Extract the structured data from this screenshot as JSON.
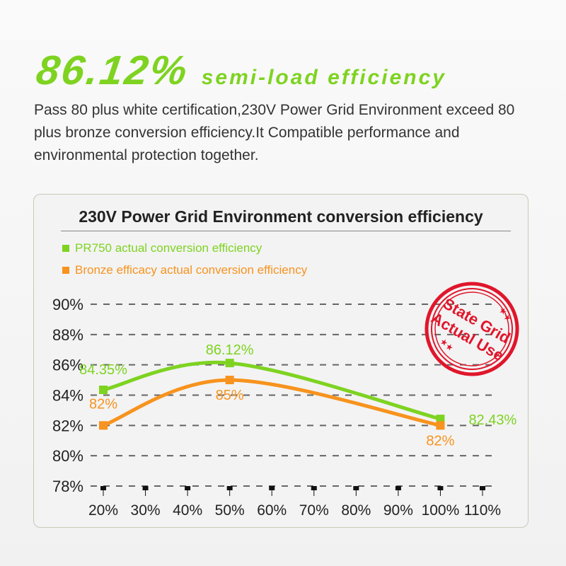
{
  "headline": {
    "value": "86.12%",
    "subtitle": "semi-load efficiency"
  },
  "description": "Pass 80 plus white certification,230V Power Grid Environment exceed 80 plus bronze conversion efficiency.It Compatible performance and environmental protection together.",
  "stamp": {
    "line1": "State Grid",
    "line2": "Actual Use",
    "color": "#e0162b"
  },
  "chart_data": {
    "type": "line",
    "title": "230V Power Grid Environment conversion efficiency",
    "xlabel": "",
    "ylabel": "",
    "x": [
      20,
      30,
      40,
      50,
      60,
      70,
      80,
      90,
      100,
      110
    ],
    "x_tick_labels": [
      "20%",
      "30%",
      "40%",
      "50%",
      "60%",
      "70%",
      "80%",
      "90%",
      "100%",
      "110%"
    ],
    "y_tick_labels": [
      "90%",
      "88%",
      "86%",
      "84%",
      "82%",
      "80%",
      "78%"
    ],
    "y_ticks": [
      90,
      88,
      86,
      84,
      82,
      80,
      78
    ],
    "ylim": [
      78,
      90
    ],
    "grid": "horizontal dashed",
    "legend_position": "top-left",
    "series": [
      {
        "name": "PR750 actual conversion efficiency",
        "color": "#7ed321",
        "x": [
          20,
          50,
          100
        ],
        "values": [
          84.35,
          86.12,
          82.43
        ],
        "labels": [
          "84.35%",
          "86.12%",
          "82.43%"
        ]
      },
      {
        "name": "Bronze efficacy actual conversion efficiency",
        "color": "#f7931e",
        "x": [
          20,
          50,
          100
        ],
        "values": [
          82,
          85,
          82
        ],
        "labels": [
          "82%",
          "85%",
          "82%"
        ]
      }
    ]
  }
}
